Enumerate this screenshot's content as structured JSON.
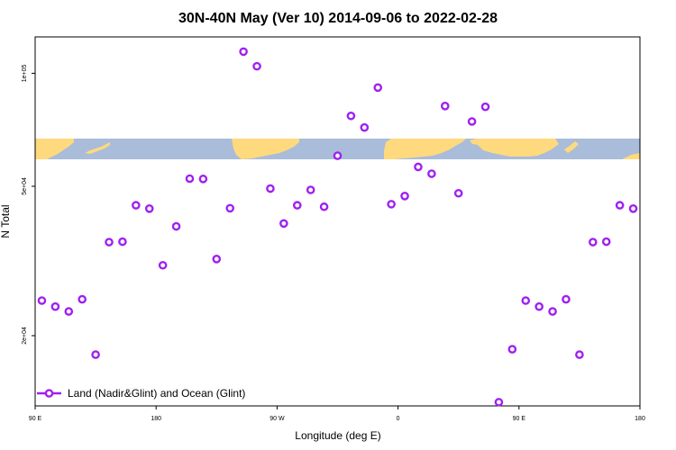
{
  "chart_data": {
    "type": "scatter",
    "title": "30N-40N May (Ver 10)   2014-09-06 to 2022-02-28",
    "xlabel": "Longitude (deg E)",
    "ylabel": "N Total",
    "x_ticks": [
      {
        "x": 90,
        "label": "90 E"
      },
      {
        "x": 180,
        "label": "180"
      },
      {
        "x": 270,
        "label": "90 W"
      },
      {
        "x": 360,
        "label": "0"
      },
      {
        "x": 450,
        "label": "90 E"
      },
      {
        "x": 540,
        "label": "180"
      }
    ],
    "y_ticks": [
      {
        "y": 20000,
        "label": "2e+04"
      },
      {
        "y": 50000,
        "label": "5e+04"
      },
      {
        "y": 100000,
        "label": "1e+05"
      }
    ],
    "ylog": true,
    "xlim": [
      90,
      540
    ],
    "ylim": [
      13000,
      125000
    ],
    "grid": false,
    "legend_position": "bottom-left",
    "marker_color": "#a020f0",
    "series": [
      {
        "name": "Land (Nadir&Glint) and Ocean (Glint)",
        "x": [
          95,
          105,
          115,
          125,
          135,
          145,
          155,
          165,
          175,
          185,
          195,
          205,
          215,
          225,
          235,
          245,
          255,
          265,
          275,
          285,
          295,
          305,
          315,
          325,
          335,
          345,
          355,
          365,
          375,
          385,
          395,
          405,
          415,
          425,
          435,
          445,
          455,
          465,
          475,
          485,
          495,
          505,
          515,
          525,
          535
        ],
        "y": [
          24800,
          23900,
          23200,
          25000,
          17800,
          35500,
          35600,
          44500,
          43600,
          30800,
          39100,
          52400,
          52300,
          32000,
          43700,
          114200,
          104400,
          49300,
          39800,
          44500,
          48900,
          44100,
          60300,
          77000,
          71700,
          91600,
          44800,
          47100,
          56300,
          54000,
          81800,
          47900,
          74400,
          81400,
          13300,
          18400,
          24800,
          23900,
          23200,
          25000,
          17800,
          35500,
          35600,
          44500,
          43600
        ]
      }
    ],
    "map_colors": {
      "ocean": "#a9bcd9",
      "land": "#ffd97d"
    }
  }
}
